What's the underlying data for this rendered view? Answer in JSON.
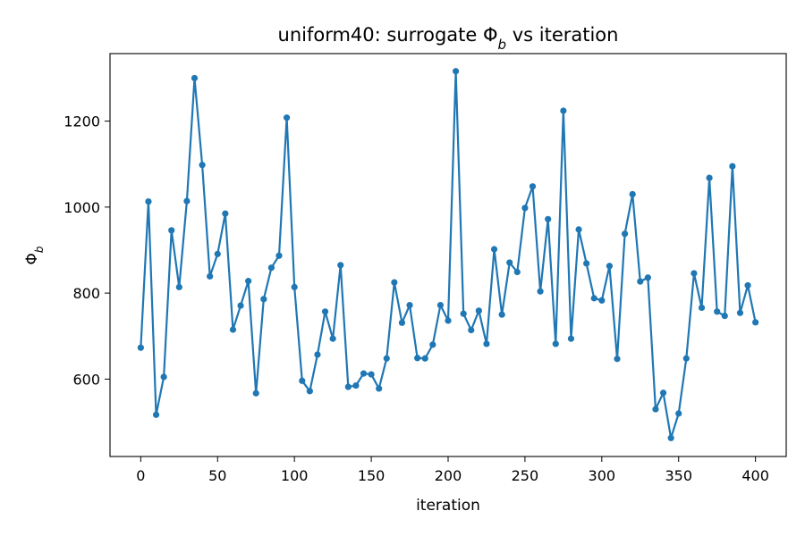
{
  "chart_data": {
    "type": "line",
    "title": "uniform40: surrogate Φ",
    "title_sub": "b",
    "title_suffix": " vs iteration",
    "xlabel": "iteration",
    "ylabel": "Φ",
    "ylabel_sub": "b",
    "xlim": [
      -20,
      420
    ],
    "ylim": [
      420,
      1357
    ],
    "xticks": [
      0,
      50,
      100,
      150,
      200,
      250,
      300,
      350,
      400
    ],
    "yticks": [
      600,
      800,
      1000,
      1200
    ],
    "grid": false,
    "color": "#1f77b4",
    "x": [
      0,
      5,
      10,
      15,
      20,
      25,
      30,
      35,
      40,
      45,
      50,
      55,
      60,
      65,
      70,
      75,
      80,
      85,
      90,
      95,
      100,
      105,
      110,
      115,
      120,
      125,
      130,
      135,
      140,
      145,
      150,
      155,
      160,
      165,
      170,
      175,
      180,
      185,
      190,
      195,
      200,
      205,
      210,
      215,
      220,
      225,
      230,
      235,
      240,
      245,
      250,
      255,
      260,
      265,
      270,
      275,
      280,
      285,
      290,
      295,
      300,
      305,
      310,
      315,
      320,
      325,
      330,
      335,
      340,
      345,
      350,
      355,
      360,
      365,
      370,
      375,
      380,
      385,
      390,
      395,
      400
    ],
    "y": [
      673,
      1013,
      517,
      605,
      946,
      814,
      1014,
      1300,
      1098,
      839,
      891,
      985,
      715,
      771,
      828,
      567,
      786,
      859,
      887,
      1208,
      814,
      596,
      572,
      657,
      757,
      694,
      865,
      582,
      585,
      613,
      611,
      578,
      648,
      825,
      731,
      772,
      649,
      648,
      680,
      772,
      736,
      1316,
      752,
      714,
      759,
      682,
      902,
      750,
      871,
      849,
      998,
      1048,
      804,
      972,
      682,
      1224,
      694,
      948,
      869,
      788,
      783,
      863,
      647,
      938,
      1030,
      827,
      836,
      530,
      568,
      463,
      520,
      648,
      846,
      766,
      1068,
      757,
      747,
      1095,
      754,
      818,
      732
    ]
  }
}
